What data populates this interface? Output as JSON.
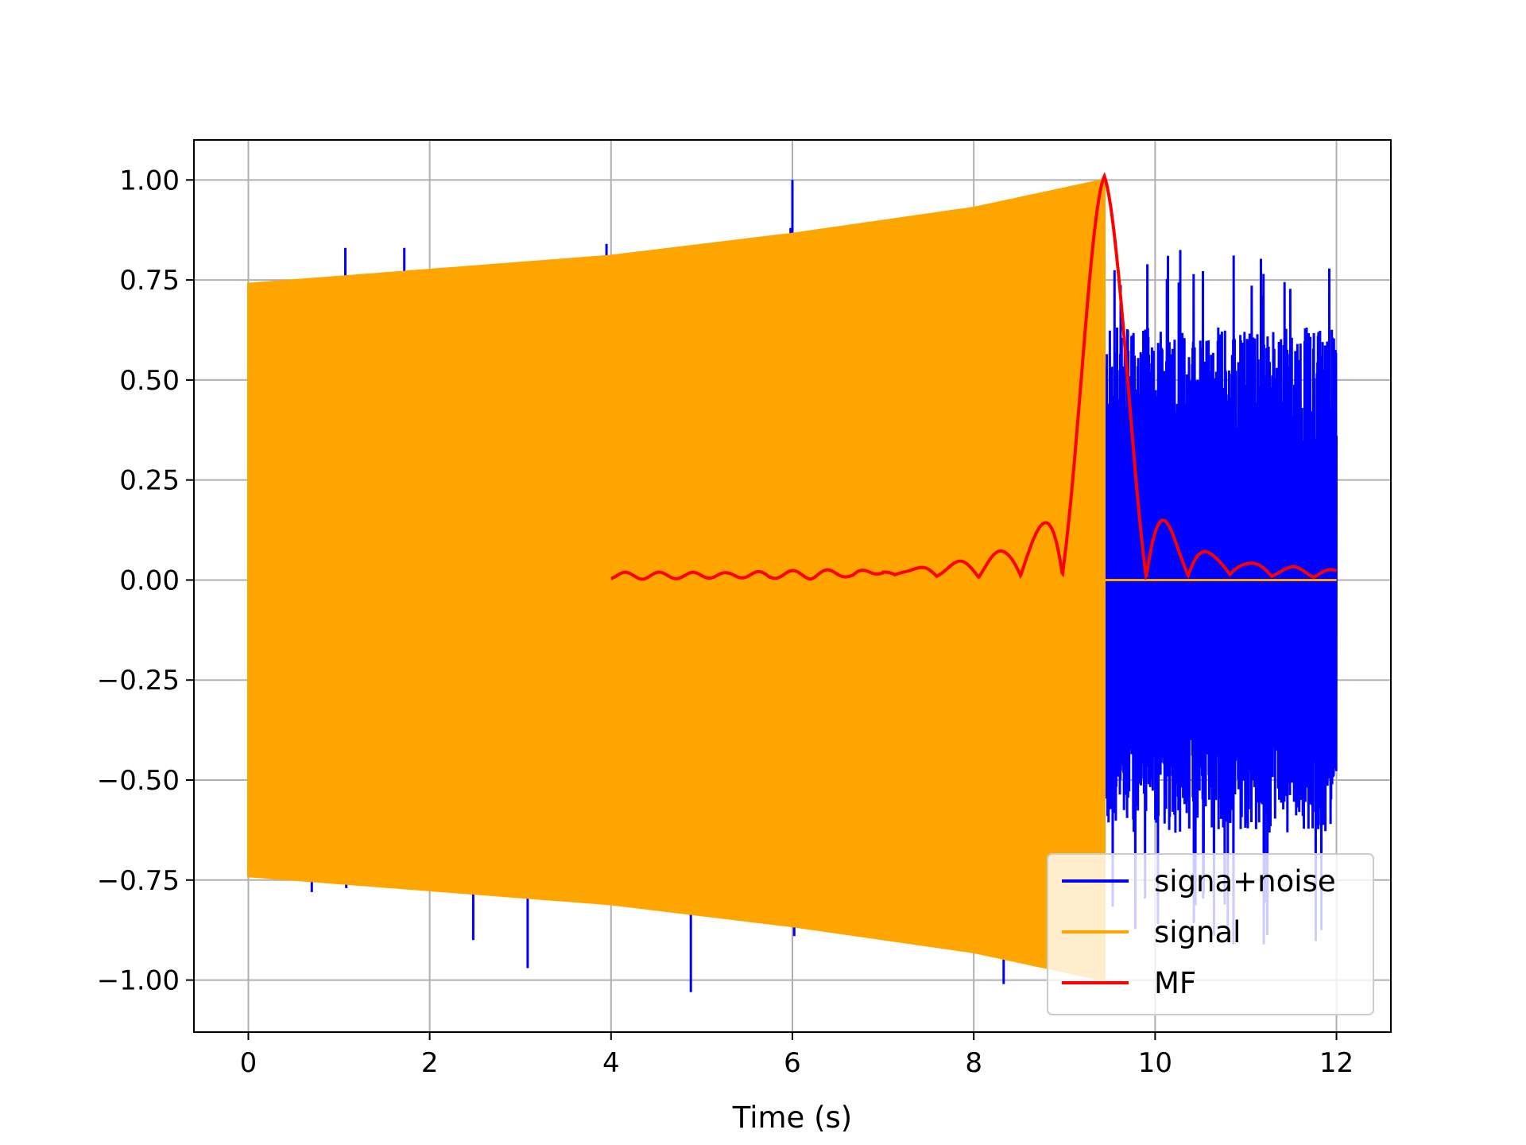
{
  "chart_data": {
    "type": "line",
    "title": "",
    "xlabel": "Time (s)",
    "ylabel": "",
    "xlim": [
      -0.6,
      12.6
    ],
    "ylim": [
      -1.13,
      1.1
    ],
    "grid": true,
    "legend_position": "lower-right",
    "xticks": [
      0,
      2,
      4,
      6,
      8,
      10,
      12
    ],
    "xtick_labels": [
      "0",
      "2",
      "4",
      "6",
      "8",
      "10",
      "12"
    ],
    "yticks": [
      1.0,
      0.75,
      0.5,
      0.25,
      0.0,
      -0.25,
      -0.5,
      -0.75,
      -1.0
    ],
    "ytick_labels": [
      "1.00",
      "0.75",
      "0.50",
      "0.25",
      "0.00",
      "−0.25",
      "−0.50",
      "−0.75",
      "−1.00"
    ],
    "series": [
      {
        "name": "signa+noise",
        "color": "#0000ff",
        "description_of_shape": "noise spikes over the signal, dense noise band after the signal ends",
        "spikes": [
          [
            0.7,
            -0.78
          ],
          [
            1.07,
            0.83
          ],
          [
            1.08,
            -0.77
          ],
          [
            1.72,
            0.83
          ],
          [
            2.1,
            -0.77
          ],
          [
            2.48,
            -0.9
          ],
          [
            3.08,
            -0.97
          ],
          [
            3.95,
            0.84
          ],
          [
            4.88,
            -1.03
          ],
          [
            5.98,
            0.88
          ],
          [
            6.0,
            1.0
          ],
          [
            6.02,
            -0.89
          ],
          [
            6.5,
            0.88
          ],
          [
            8.0,
            -0.93
          ],
          [
            8.33,
            -1.01
          ]
        ],
        "noise_band": {
          "x_start": 9.45,
          "x_end": 12.0,
          "upper_peak": 0.83,
          "lower_peak": -0.92,
          "typical_amplitude": 0.55
        }
      },
      {
        "name": "signal",
        "color": "#ffa500",
        "envelope_x": [
          0.0,
          2.0,
          4.0,
          6.0,
          8.0,
          9.44
        ],
        "envelope_y": [
          0.74,
          0.775,
          0.81,
          0.865,
          0.93,
          1.0
        ],
        "x_end": 9.44,
        "zero_after": true
      },
      {
        "name": "MF",
        "color": "#ff0000",
        "x_start": 4.0,
        "x_end": 12.0,
        "peak_x": 9.44,
        "peak_y": 1.0,
        "baseline": 0.01
      }
    ]
  }
}
